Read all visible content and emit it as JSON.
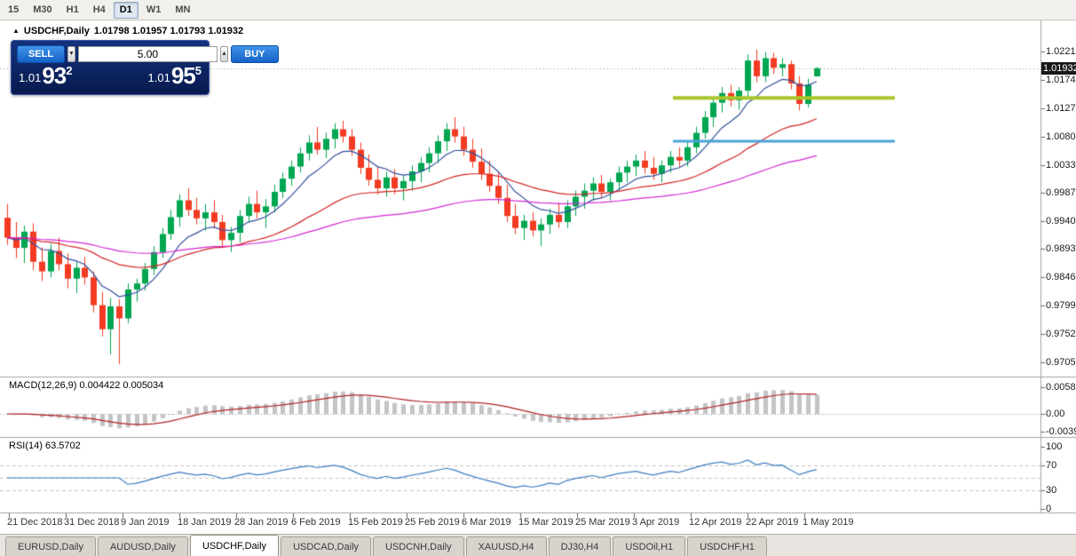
{
  "toolbar": {
    "timeframes": [
      {
        "label": "15",
        "active": false
      },
      {
        "label": "M30",
        "active": false
      },
      {
        "label": "H1",
        "active": false
      },
      {
        "label": "H4",
        "active": false
      },
      {
        "label": "D1",
        "active": true
      },
      {
        "label": "W1",
        "active": false
      },
      {
        "label": "MN",
        "active": false
      }
    ]
  },
  "icons": {
    "chart": "▲",
    "volume_down": "▼",
    "volume_up": "▲"
  },
  "chart": {
    "title": {
      "symbol": "USDCHF,Daily",
      "ohlc": "1.01798 1.01957 1.01793 1.01932"
    },
    "trade_panel": {
      "sell_label": "SELL",
      "buy_label": "BUY",
      "volume": "5.00",
      "sell_price": {
        "prefix": "1.01",
        "big": "93",
        "sup": "2"
      },
      "buy_price": {
        "prefix": "1.01",
        "big": "95",
        "sup": "5"
      }
    },
    "price_axis": {
      "labels": [
        "1.02210",
        "1.01740",
        "1.01270",
        "1.00800",
        "1.00330",
        "0.99870",
        "0.99400",
        "0.98930",
        "0.98460",
        "0.97990",
        "0.97520",
        "0.97050"
      ],
      "current": "1.01932"
    },
    "macd": {
      "title": "MACD(12,26,9) 0.004422 0.005034",
      "axis": [
        "0.005805",
        "0.00",
        "-0.003945"
      ]
    },
    "rsi": {
      "title": "RSI(14) 63.5702",
      "axis": [
        "100",
        "70",
        "30",
        "0"
      ]
    },
    "date_axis": [
      "21 Dec 2018",
      "31 Dec 2018",
      "9 Jan 2019",
      "18 Jan 2019",
      "28 Jan 2019",
      "6 Feb 2019",
      "15 Feb 2019",
      "25 Feb 2019",
      "6 Mar 2019",
      "15 Mar 2019",
      "25 Mar 2019",
      "3 Apr 2019",
      "12 Apr 2019",
      "22 Apr 2019",
      "1 May 2019"
    ],
    "drawings": {
      "resistance_line": {
        "price": 1.0144,
        "color": "#a8c62a"
      },
      "support_line": {
        "price": 1.0072,
        "color": "#4aa3d8"
      }
    },
    "colors": {
      "candle_up": "#00a651",
      "candle_down": "#f23b22",
      "macd_hist": "#c4c4c4",
      "macd_signal": "#b22222",
      "rsi_line": "#3c7fc0",
      "trade_button": "#2a7de1",
      "panel_bg": "#0a1f62"
    }
  },
  "chart_data": {
    "type": "candlestick",
    "symbol": "USDCHF",
    "timeframe": "Daily",
    "visible_price_range": [
      0.9681,
      1.0273
    ],
    "overlays": [
      {
        "name": "ma-fast",
        "period": 8,
        "color": "#33509e"
      },
      {
        "name": "ma-mid",
        "period": 30,
        "color": "#d42424"
      },
      {
        "name": "ma-slow",
        "period": 70,
        "color": "#d428d4"
      }
    ],
    "macd_params": {
      "fast": 12,
      "slow": 26,
      "signal": 9
    },
    "rsi_period": 14,
    "ohlc": [
      [
        0.9945,
        0.9968,
        0.99,
        0.9912
      ],
      [
        0.9912,
        0.9938,
        0.9878,
        0.9895
      ],
      [
        0.9895,
        0.9932,
        0.987,
        0.9922
      ],
      [
        0.9922,
        0.9936,
        0.9858,
        0.9872
      ],
      [
        0.9872,
        0.9896,
        0.984,
        0.9856
      ],
      [
        0.9856,
        0.9902,
        0.9846,
        0.989
      ],
      [
        0.989,
        0.9912,
        0.9858,
        0.9868
      ],
      [
        0.9868,
        0.9886,
        0.9828,
        0.9844
      ],
      [
        0.9844,
        0.9872,
        0.982,
        0.9862
      ],
      [
        0.9862,
        0.988,
        0.9834,
        0.9846
      ],
      [
        0.9846,
        0.9856,
        0.9788,
        0.98
      ],
      [
        0.98,
        0.9822,
        0.9748,
        0.976
      ],
      [
        0.976,
        0.9812,
        0.9718,
        0.9798
      ],
      [
        0.9798,
        0.981,
        0.9702,
        0.9778
      ],
      [
        0.9778,
        0.9836,
        0.977,
        0.9826
      ],
      [
        0.9826,
        0.9844,
        0.9806,
        0.9836
      ],
      [
        0.9836,
        0.987,
        0.9824,
        0.986
      ],
      [
        0.986,
        0.9898,
        0.985,
        0.9888
      ],
      [
        0.9888,
        0.9928,
        0.9878,
        0.9918
      ],
      [
        0.9918,
        0.9958,
        0.9908,
        0.9946
      ],
      [
        0.9946,
        0.9984,
        0.993,
        0.9974
      ],
      [
        0.9974,
        0.9994,
        0.9948,
        0.9958
      ],
      [
        0.9958,
        0.9978,
        0.9934,
        0.9944
      ],
      [
        0.9944,
        0.9968,
        0.9924,
        0.9954
      ],
      [
        0.9954,
        0.9974,
        0.9928,
        0.9938
      ],
      [
        0.9938,
        0.995,
        0.9898,
        0.9908
      ],
      [
        0.9908,
        0.993,
        0.9888,
        0.992
      ],
      [
        0.992,
        0.9958,
        0.9904,
        0.9948
      ],
      [
        0.9948,
        0.998,
        0.9938,
        0.9968
      ],
      [
        0.9968,
        0.999,
        0.9944,
        0.9954
      ],
      [
        0.9954,
        0.9976,
        0.9928,
        0.9964
      ],
      [
        0.9964,
        1.0,
        0.9954,
        0.9988
      ],
      [
        0.9988,
        1.002,
        0.9978,
        1.001
      ],
      [
        1.001,
        1.004,
        0.9998,
        1.003
      ],
      [
        1.003,
        1.0062,
        1.002,
        1.0052
      ],
      [
        1.0052,
        1.0082,
        1.004,
        1.007
      ],
      [
        1.007,
        1.0096,
        1.005,
        1.0058
      ],
      [
        1.0058,
        1.0086,
        1.0044,
        1.0076
      ],
      [
        1.0076,
        1.0102,
        1.006,
        1.0092
      ],
      [
        1.0092,
        1.0106,
        1.007,
        1.008
      ],
      [
        1.008,
        1.0092,
        1.0048,
        1.0058
      ],
      [
        1.0058,
        1.007,
        1.0018,
        1.0028
      ],
      [
        1.0028,
        1.005,
        0.9998,
        1.0008
      ],
      [
        1.0008,
        1.003,
        0.9984,
        0.9994
      ],
      [
        0.9994,
        1.0022,
        0.998,
        1.0012
      ],
      [
        1.0012,
        1.0026,
        0.9984,
        0.9994
      ],
      [
        0.9994,
        1.0016,
        0.9974,
        1.0006
      ],
      [
        1.0006,
        1.0032,
        0.999,
        1.0022
      ],
      [
        1.0022,
        1.0046,
        1.0004,
        1.0036
      ],
      [
        1.0036,
        1.0062,
        1.002,
        1.0052
      ],
      [
        1.0052,
        1.0082,
        1.0036,
        1.0072
      ],
      [
        1.0072,
        1.0102,
        1.0056,
        1.0092
      ],
      [
        1.0092,
        1.0112,
        1.007,
        1.008
      ],
      [
        1.008,
        1.0096,
        1.0048,
        1.0058
      ],
      [
        1.0058,
        1.0076,
        1.0028,
        1.0038
      ],
      [
        1.0038,
        1.006,
        1.0008,
        1.0018
      ],
      [
        1.0018,
        1.004,
        0.9988,
        0.9998
      ],
      [
        0.9998,
        1.002,
        0.9968,
        0.9978
      ],
      [
        0.9978,
        1.0,
        0.9938,
        0.9948
      ],
      [
        0.9948,
        0.9968,
        0.9918,
        0.9928
      ],
      [
        0.9928,
        0.995,
        0.9908,
        0.994
      ],
      [
        0.994,
        0.9954,
        0.9914,
        0.9924
      ],
      [
        0.9924,
        0.9944,
        0.9898,
        0.9934
      ],
      [
        0.9934,
        0.996,
        0.9918,
        0.995
      ],
      [
        0.995,
        0.997,
        0.9928,
        0.9938
      ],
      [
        0.9938,
        0.9974,
        0.9928,
        0.9964
      ],
      [
        0.9964,
        0.999,
        0.9948,
        0.998
      ],
      [
        0.998,
        1.0002,
        0.996,
        0.999
      ],
      [
        0.999,
        1.0012,
        0.9974,
        1.0002
      ],
      [
        1.0002,
        1.0016,
        0.9978,
        0.9988
      ],
      [
        0.9988,
        1.001,
        0.9974,
        1.0004
      ],
      [
        1.0004,
        1.003,
        0.999,
        1.002
      ],
      [
        1.002,
        1.004,
        1.0004,
        1.003
      ],
      [
        1.003,
        1.005,
        1.0014,
        1.004
      ],
      [
        1.004,
        1.0056,
        1.0018,
        1.0028
      ],
      [
        1.0028,
        1.0046,
        1.0008,
        1.0018
      ],
      [
        1.0018,
        1.004,
        1.0004,
        1.0032
      ],
      [
        1.0032,
        1.0056,
        1.002,
        1.0046
      ],
      [
        1.0046,
        1.0062,
        1.003,
        1.004
      ],
      [
        1.004,
        1.0072,
        1.003,
        1.0062
      ],
      [
        1.0062,
        1.0096,
        1.0052,
        1.0086
      ],
      [
        1.0086,
        1.0122,
        1.0076,
        1.0112
      ],
      [
        1.0112,
        1.0146,
        1.0096,
        1.0136
      ],
      [
        1.0136,
        1.0162,
        1.012,
        1.0152
      ],
      [
        1.0152,
        1.0166,
        1.013,
        1.014
      ],
      [
        1.014,
        1.0162,
        1.0124,
        1.0156
      ],
      [
        1.0156,
        1.0216,
        1.0146,
        1.0206
      ],
      [
        1.0206,
        1.0224,
        1.017,
        1.018
      ],
      [
        1.018,
        1.022,
        1.017,
        1.021
      ],
      [
        1.021,
        1.0219,
        1.0184,
        1.0194
      ],
      [
        1.0194,
        1.021,
        1.018,
        1.02
      ],
      [
        1.02,
        1.0206,
        1.0158,
        1.0168
      ],
      [
        1.0168,
        1.018,
        1.0123,
        1.0134
      ],
      [
        1.0134,
        1.0176,
        1.0128,
        1.0166
      ],
      [
        1.01798,
        1.01957,
        1.01793,
        1.01932
      ]
    ]
  },
  "tabs": {
    "items": [
      "EURUSD,Daily",
      "AUDUSD,Daily",
      "USDCHF,Daily",
      "USDCAD,Daily",
      "USDCNH,Daily",
      "XAUUSD,H4",
      "DJ30,H4",
      "USDOil,H1",
      "USDCHF,H1"
    ],
    "active": "USDCHF,Daily"
  }
}
